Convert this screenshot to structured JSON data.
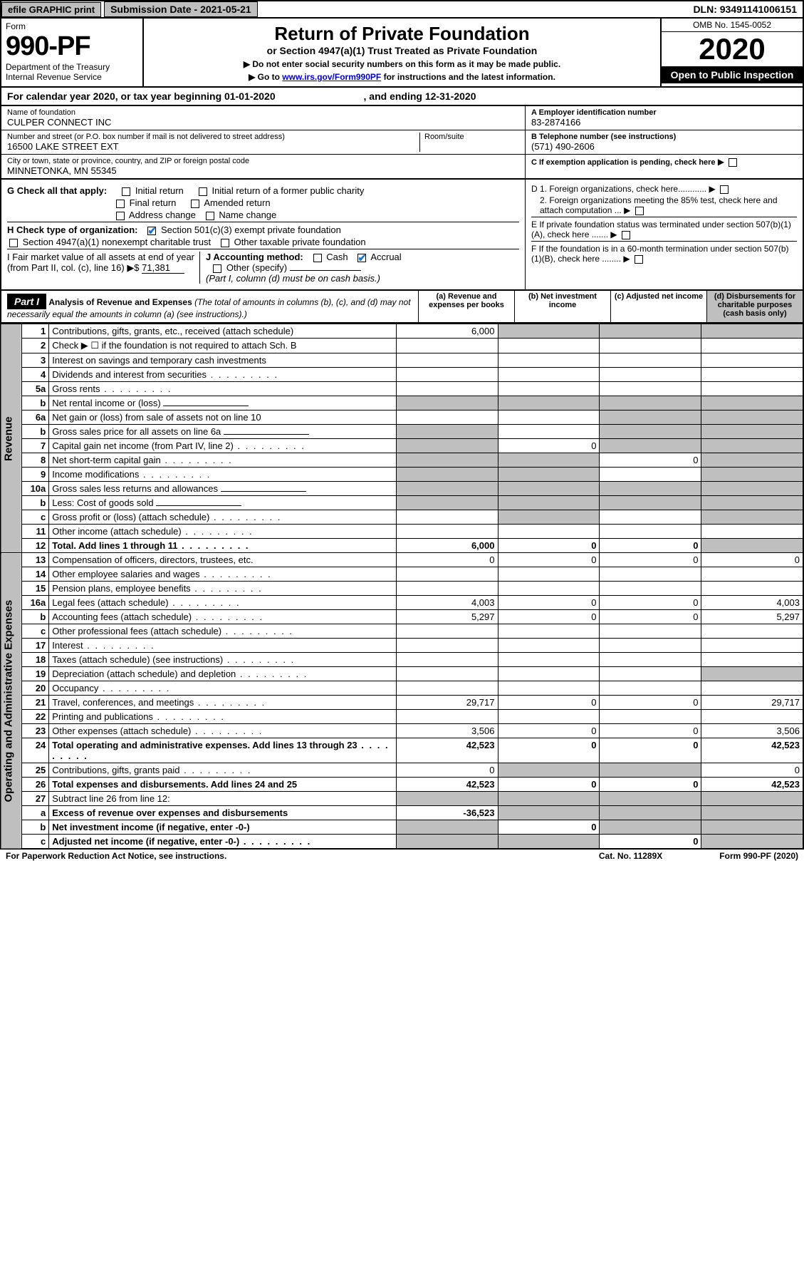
{
  "topbar": {
    "efile": "efile GRAPHIC print",
    "submission": "Submission Date - 2021-05-21",
    "dln": "DLN: 93491141006151"
  },
  "header": {
    "form": "Form",
    "formnum": "990-PF",
    "dept": "Department of the Treasury",
    "irs": "Internal Revenue Service",
    "title": "Return of Private Foundation",
    "subtitle": "or Section 4947(a)(1) Trust Treated as Private Foundation",
    "note1": "▶ Do not enter social security numbers on this form as it may be made public.",
    "note2a": "▶ Go to ",
    "note2link": "www.irs.gov/Form990PF",
    "note2b": " for instructions and the latest information.",
    "omb": "OMB No. 1545-0052",
    "year": "2020",
    "open": "Open to Public Inspection"
  },
  "calyear": {
    "a": "For calendar year 2020, or tax year beginning 01-01-2020",
    "b": ", and ending 12-31-2020"
  },
  "info": {
    "name_label": "Name of foundation",
    "name": "CULPER CONNECT INC",
    "addr_label": "Number and street (or P.O. box number if mail is not delivered to street address)",
    "addr": "16500 LAKE STREET EXT",
    "room_label": "Room/suite",
    "city_label": "City or town, state or province, country, and ZIP or foreign postal code",
    "city": "MINNETONKA, MN  55345",
    "ein_label": "A Employer identification number",
    "ein": "83-2874166",
    "tel_label": "B Telephone number (see instructions)",
    "tel": "(571) 490-2606",
    "c_label": "C If exemption application is pending, check here"
  },
  "checks": {
    "g": "G Check all that apply:",
    "g1": "Initial return",
    "g2": "Initial return of a former public charity",
    "g3": "Final return",
    "g4": "Amended return",
    "g5": "Address change",
    "g6": "Name change",
    "h": "H Check type of organization:",
    "h1": "Section 501(c)(3) exempt private foundation",
    "h2": "Section 4947(a)(1) nonexempt charitable trust",
    "h3": "Other taxable private foundation",
    "i": "I Fair market value of all assets at end of year (from Part II, col. (c), line 16) ▶$",
    "i_val": "71,381",
    "j": "J Accounting method:",
    "j1": "Cash",
    "j2": "Accrual",
    "j3": "Other (specify)",
    "j_note": "(Part I, column (d) must be on cash basis.)",
    "d1": "D 1. Foreign organizations, check here............",
    "d2": "2. Foreign organizations meeting the 85% test, check here and attach computation ...",
    "e": "E If private foundation status was terminated under section 507(b)(1)(A), check here .......",
    "f": "F If the foundation is in a 60-month termination under section 507(b)(1)(B), check here ........"
  },
  "part1": {
    "title": "Part I",
    "desc_title": "Analysis of Revenue and Expenses",
    "desc_sub": " (The total of amounts in columns (b), (c), and (d) may not necessarily equal the amounts in column (a) (see instructions).)",
    "col_a": "(a)   Revenue and expenses per books",
    "col_b": "(b)  Net investment income",
    "col_c": "(c)  Adjusted net income",
    "col_d": "(d)  Disbursements for charitable purposes (cash basis only)",
    "side_rev": "Revenue",
    "side_exp": "Operating and Administrative Expenses",
    "rows": [
      {
        "n": "1",
        "d": "Contributions, gifts, grants, etc., received (attach schedule)",
        "a": "6,000",
        "ga": false,
        "gb": true,
        "gc": true,
        "gd": true
      },
      {
        "n": "2",
        "d": "Check ▶ ☐ if the foundation is not required to attach Sch. B",
        "noamt": true,
        "dotsrow": true
      },
      {
        "n": "3",
        "d": "Interest on savings and temporary cash investments"
      },
      {
        "n": "4",
        "d": "Dividends and interest from securities",
        "dots": true
      },
      {
        "n": "5a",
        "d": "Gross rents",
        "dots": true
      },
      {
        "n": "b",
        "d": "Net rental income or (loss)",
        "inline": true,
        "gb": true,
        "gc": true,
        "gd": true,
        "ga": true
      },
      {
        "n": "6a",
        "d": "Net gain or (loss) from sale of assets not on line 10",
        "gd": true,
        "gc": true
      },
      {
        "n": "b",
        "d": "Gross sales price for all assets on line 6a",
        "inline": true,
        "ga": true,
        "gc": true,
        "gd": true
      },
      {
        "n": "7",
        "d": "Capital gain net income (from Part IV, line 2)",
        "dots": true,
        "b": "0",
        "ga": true,
        "gc": true,
        "gd": true
      },
      {
        "n": "8",
        "d": "Net short-term capital gain",
        "dots": true,
        "c": "0",
        "ga": true,
        "gb": true,
        "gd": true
      },
      {
        "n": "9",
        "d": "Income modifications",
        "dots": true,
        "ga": true,
        "gb": true,
        "gd": true
      },
      {
        "n": "10a",
        "d": "Gross sales less returns and allowances",
        "inline": true,
        "ga": true,
        "gb": true,
        "gc": true,
        "gd": true
      },
      {
        "n": "b",
        "d": "Less: Cost of goods sold",
        "dots": true,
        "inline": true,
        "ga": true,
        "gb": true,
        "gc": true,
        "gd": true
      },
      {
        "n": "c",
        "d": "Gross profit or (loss) (attach schedule)",
        "dots": true,
        "gb": true,
        "gd": true
      },
      {
        "n": "11",
        "d": "Other income (attach schedule)",
        "dots": true
      },
      {
        "n": "12",
        "d": "Total. Add lines 1 through 11",
        "dots": true,
        "bold": true,
        "a": "6,000",
        "b": "0",
        "c": "0",
        "gd": true
      }
    ],
    "exprows": [
      {
        "n": "13",
        "d": "Compensation of officers, directors, trustees, etc.",
        "a": "0",
        "b": "0",
        "c": "0",
        "dd": "0"
      },
      {
        "n": "14",
        "d": "Other employee salaries and wages",
        "dots": true
      },
      {
        "n": "15",
        "d": "Pension plans, employee benefits",
        "dots": true
      },
      {
        "n": "16a",
        "d": "Legal fees (attach schedule)",
        "dots": true,
        "a": "4,003",
        "b": "0",
        "c": "0",
        "dd": "4,003"
      },
      {
        "n": "b",
        "d": "Accounting fees (attach schedule)",
        "dots": true,
        "a": "5,297",
        "b": "0",
        "c": "0",
        "dd": "5,297"
      },
      {
        "n": "c",
        "d": "Other professional fees (attach schedule)",
        "dots": true
      },
      {
        "n": "17",
        "d": "Interest",
        "dots": true
      },
      {
        "n": "18",
        "d": "Taxes (attach schedule) (see instructions)",
        "dots": true
      },
      {
        "n": "19",
        "d": "Depreciation (attach schedule) and depletion",
        "dots": true,
        "gd": true
      },
      {
        "n": "20",
        "d": "Occupancy",
        "dots": true
      },
      {
        "n": "21",
        "d": "Travel, conferences, and meetings",
        "dots": true,
        "a": "29,717",
        "b": "0",
        "c": "0",
        "dd": "29,717"
      },
      {
        "n": "22",
        "d": "Printing and publications",
        "dots": true
      },
      {
        "n": "23",
        "d": "Other expenses (attach schedule)",
        "dots": true,
        "a": "3,506",
        "b": "0",
        "c": "0",
        "dd": "3,506"
      },
      {
        "n": "24",
        "d": "Total operating and administrative expenses. Add lines 13 through 23",
        "dots": true,
        "bold": true,
        "a": "42,523",
        "b": "0",
        "c": "0",
        "dd": "42,523"
      },
      {
        "n": "25",
        "d": "Contributions, gifts, grants paid",
        "dots": true,
        "a": "0",
        "gb": true,
        "gc": true,
        "dd": "0"
      },
      {
        "n": "26",
        "d": "Total expenses and disbursements. Add lines 24 and 25",
        "bold": true,
        "a": "42,523",
        "b": "0",
        "c": "0",
        "dd": "42,523"
      },
      {
        "n": "27",
        "d": "Subtract line 26 from line 12:",
        "ga": true,
        "gb": true,
        "gc": true,
        "gd": true
      },
      {
        "n": "a",
        "d": "Excess of revenue over expenses and disbursements",
        "bold": true,
        "a": "-36,523",
        "gb": true,
        "gc": true,
        "gd": true
      },
      {
        "n": "b",
        "d": "Net investment income (if negative, enter -0-)",
        "bold": true,
        "b": "0",
        "ga": true,
        "gc": true,
        "gd": true
      },
      {
        "n": "c",
        "d": "Adjusted net income (if negative, enter -0-)",
        "bold": true,
        "dots": true,
        "c": "0",
        "ga": true,
        "gb": true,
        "gd": true
      }
    ]
  },
  "footer": {
    "left": "For Paperwork Reduction Act Notice, see instructions.",
    "mid": "Cat. No. 11289X",
    "right": "Form 990-PF (2020)"
  }
}
